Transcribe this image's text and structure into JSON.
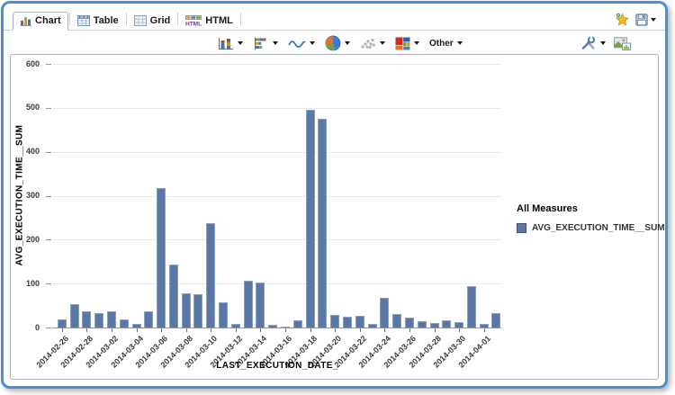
{
  "window": {
    "frame_color": "#4a90d2"
  },
  "tabs": [
    {
      "label": "Chart",
      "icon": "chart-tab-icon",
      "active": true
    },
    {
      "label": "Table",
      "icon": "table-tab-icon",
      "active": false
    },
    {
      "label": "Grid",
      "icon": "grid-tab-icon",
      "active": false
    },
    {
      "label": "HTML",
      "icon": "html-tab-icon",
      "active": false
    }
  ],
  "header_actions": {
    "icons": [
      "add-favorite-star-icon",
      "save-icon",
      "save-dropdown-caret"
    ]
  },
  "toolbar": {
    "chart_type_buttons": [
      {
        "icon": "column-chart-icon"
      },
      {
        "icon": "bar-chart-icon"
      },
      {
        "icon": "line-chart-icon"
      },
      {
        "icon": "pie-chart-icon"
      },
      {
        "icon": "scatter-chart-icon"
      },
      {
        "icon": "heatmap-chart-icon"
      },
      {
        "icon": "other-chart-types",
        "label": "Other"
      }
    ],
    "other_label": "Other",
    "right_icons": [
      "settings-tools-icon",
      "export-image-icon"
    ]
  },
  "legend": {
    "title": "All Measures",
    "items": [
      {
        "label": "AVG_EXECUTION_TIME__SUM",
        "color": "#5b77a5"
      }
    ]
  },
  "chart_data": {
    "type": "bar",
    "title": "",
    "xlabel": "LAST_EXECUTION_DATE_",
    "ylabel": "AVG_EXECUTION_TIME__SUM",
    "ylim": [
      0,
      600
    ],
    "ytick_step": 100,
    "grid": true,
    "legend_position": "right",
    "bar_color": "#5b77a5",
    "categories": [
      "2014-02-26",
      "2014-02-27",
      "2014-02-28",
      "2014-03-01",
      "2014-03-02",
      "2014-03-03",
      "2014-03-04",
      "2014-03-05",
      "2014-03-06",
      "2014-03-07",
      "2014-03-08",
      "2014-03-09",
      "2014-03-10",
      "2014-03-11",
      "2014-03-12",
      "2014-03-13",
      "2014-03-14",
      "2014-03-15",
      "2014-03-16",
      "2014-03-17",
      "2014-03-18",
      "2014-03-19",
      "2014-03-20",
      "2014-03-21",
      "2014-03-22",
      "2014-03-23",
      "2014-03-24",
      "2014-03-25",
      "2014-03-26",
      "2014-03-27",
      "2014-03-28",
      "2014-03-29",
      "2014-03-30",
      "2014-03-31",
      "2014-04-01",
      "2014-04-02"
    ],
    "values": [
      18,
      53,
      36,
      32,
      36,
      19,
      9,
      36,
      318,
      144,
      77,
      75,
      237,
      57,
      9,
      107,
      103,
      7,
      2,
      17,
      495,
      476,
      28,
      24,
      27,
      8,
      68,
      30,
      23,
      14,
      10,
      17,
      13,
      95,
      9,
      33
    ],
    "x_tick_labels": [
      "2014-02-26",
      "2014-02-28",
      "2014-03-02",
      "2014-03-04",
      "2014-03-06",
      "2014-03-08",
      "2014-03-10",
      "2014-03-12",
      "2014-03-14",
      "2014-03-16",
      "2014-03-18",
      "2014-03-20",
      "2014-03-22",
      "2014-03-24",
      "2014-03-26",
      "2014-03-28",
      "2014-03-30",
      "2014-04-01"
    ]
  }
}
